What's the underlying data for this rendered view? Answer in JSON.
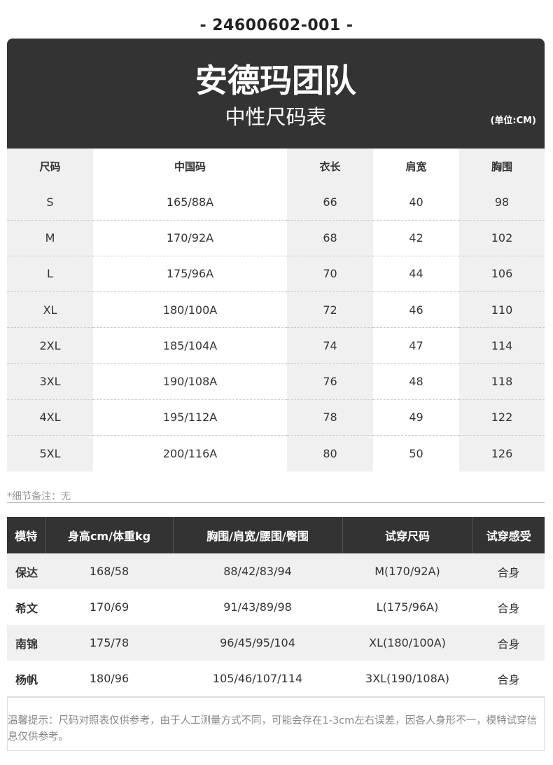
{
  "product_code": "-  24600602-001  -",
  "header": {
    "brand": "安德玛团队",
    "subtitle": "中性尺码表",
    "unit": "(单位:CM)"
  },
  "size_table": {
    "columns": [
      "尺码",
      "中国码",
      "衣长",
      "肩宽",
      "胸围"
    ],
    "rows": [
      [
        "S",
        "165/88A",
        "66",
        "40",
        "98"
      ],
      [
        "M",
        "170/92A",
        "68",
        "42",
        "102"
      ],
      [
        "L",
        "175/96A",
        "70",
        "44",
        "106"
      ],
      [
        "XL",
        "180/100A",
        "72",
        "46",
        "110"
      ],
      [
        "2XL",
        "185/104A",
        "74",
        "47",
        "114"
      ],
      [
        "3XL",
        "190/108A",
        "76",
        "48",
        "118"
      ],
      [
        "4XL",
        "195/112A",
        "78",
        "49",
        "122"
      ],
      [
        "5XL",
        "200/116A",
        "80",
        "50",
        "126"
      ]
    ]
  },
  "detail_note": "*细节备注：无",
  "model_table": {
    "columns": [
      "模特",
      "身高cm/体重kg",
      "胸围/肩宽/腰围/臀围",
      "试穿尺码",
      "试穿感受"
    ],
    "rows": [
      [
        "保达",
        "168/58",
        "88/42/83/94",
        "M(170/92A)",
        "合身"
      ],
      [
        "希文",
        "170/69",
        "91/43/89/98",
        "L(175/96A)",
        "合身"
      ],
      [
        "南锦",
        "175/78",
        "96/45/95/104",
        "XL(180/100A)",
        "合身"
      ],
      [
        "杨帆",
        "180/96",
        "105/46/107/114",
        "3XL(190/108A)",
        "合身"
      ]
    ]
  },
  "tip": "温馨提示：尺码对照表仅供参考，由于人工测量方式不同，可能会存在1-3cm左右误差，因各人身形不一，模特试穿信息仅供参考。"
}
